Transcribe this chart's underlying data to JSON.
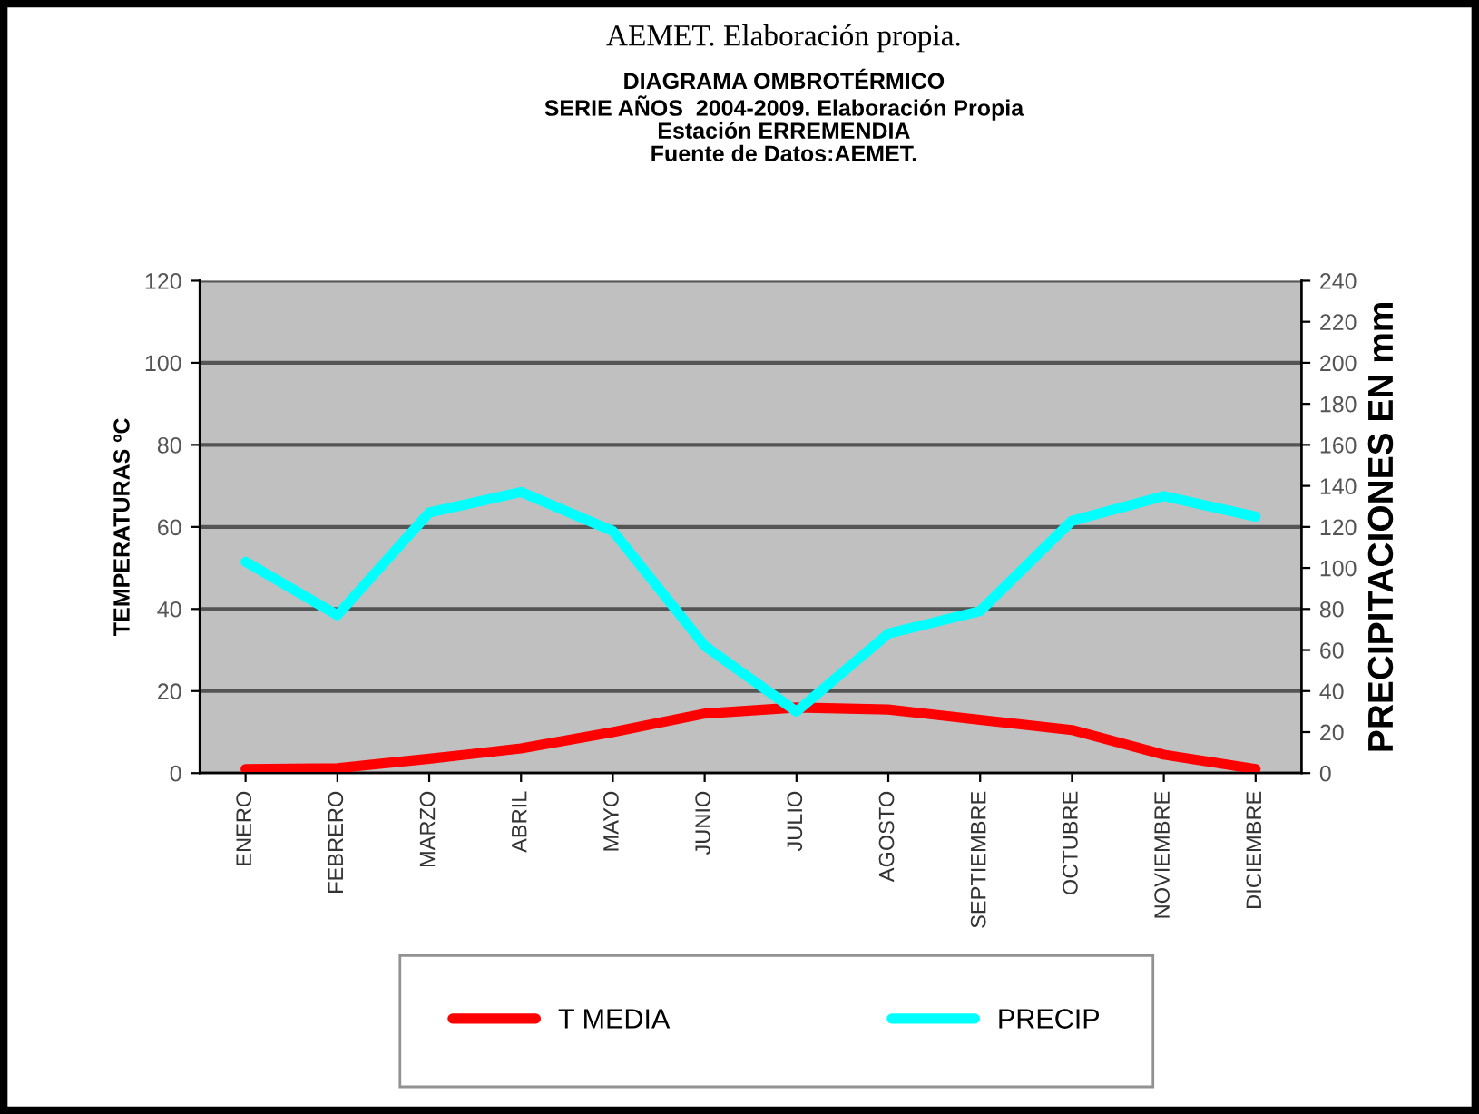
{
  "chart_data": {
    "type": "line",
    "title": "DIAGRAMA OMBROTÉRMICO\nSERIE AÑOS  2004-2009. Elaboración Propia\nEstación ERREMENDIA\nFuente de Datos:AEMET.",
    "ylabel": "TEMPERATURAS ºC",
    "y2label": "PRECIPITACIONES EN mm",
    "annotations": [
      "AEMET. Elaboración propia."
    ],
    "categories": [
      "ENERO",
      "FEBRERO",
      "MARZO",
      "ABRIL",
      "MAYO",
      "JUNIO",
      "JULIO",
      "AGOSTO",
      "SEPTIEMBRE",
      "OCTUBRE",
      "NOVIEMBRE",
      "DICIEMBRE"
    ],
    "series": [
      {
        "name": "T MEDIA",
        "color": "#ff0000",
        "values": [
          1,
          1.2,
          3.5,
          6,
          10,
          14.5,
          16,
          15.5,
          13,
          10.5,
          4.5,
          1
        ]
      },
      {
        "name": "PRECIP",
        "color": "#00ffff",
        "axis": "y2",
        "values": [
          103,
          77,
          127,
          137,
          118,
          62,
          30,
          68,
          79,
          123,
          135,
          125
        ]
      }
    ],
    "ylim": [
      0,
      120
    ],
    "yticks": [
      0,
      20,
      40,
      60,
      80,
      100,
      120
    ],
    "y2lim": [
      0,
      240
    ],
    "y2ticks": [
      0,
      20,
      40,
      60,
      80,
      100,
      120,
      140,
      160,
      180,
      200,
      220,
      240
    ],
    "grid": "y",
    "legend": "bottom"
  }
}
